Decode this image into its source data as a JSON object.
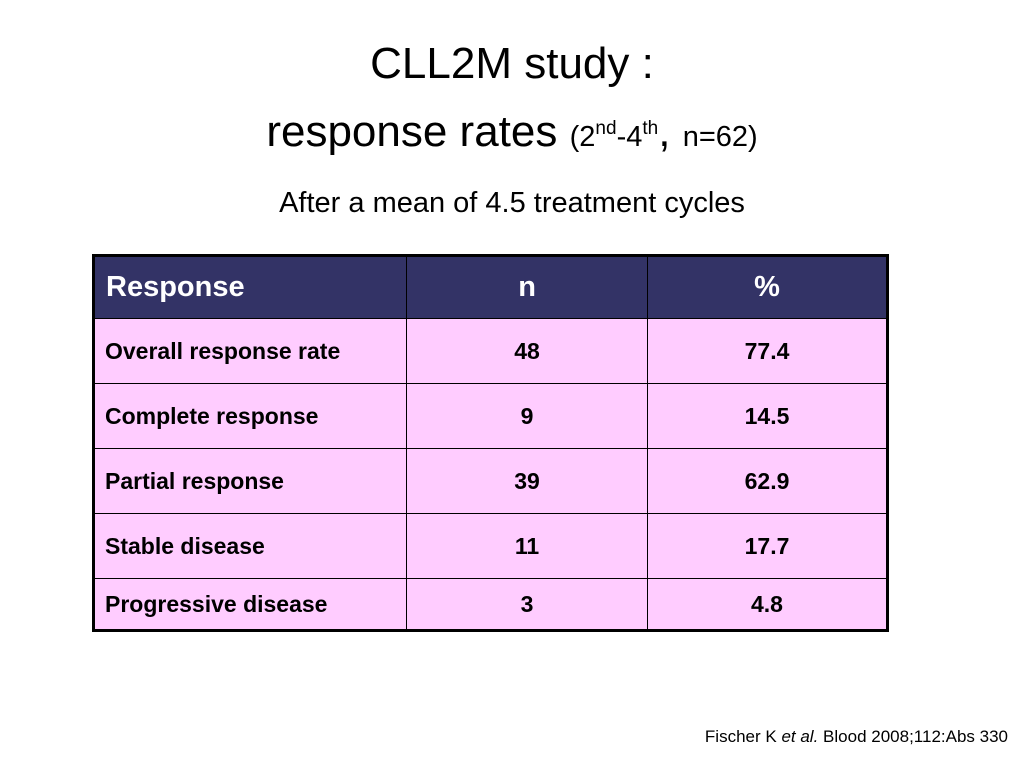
{
  "slide": {
    "title_line1": "CLL2M study :",
    "title_line2_main": "response rates",
    "title_line2_paren_open": "(2",
    "title_line2_sup1": "nd",
    "title_line2_dash": "-4",
    "title_line2_sup2": "th",
    "title_line2_comma": ",",
    "title_line2_n": "n=62)",
    "subtitle": "After a mean of 4.5 treatment cycles"
  },
  "table": {
    "headers": [
      "Response",
      "n",
      "%"
    ],
    "rows": [
      [
        "Overall response rate",
        "48",
        "77.4"
      ],
      [
        "Complete response",
        "9",
        "14.5"
      ],
      [
        "Partial response",
        "39",
        "62.9"
      ],
      [
        "Stable disease",
        "11",
        "17.7"
      ],
      [
        "Progressive disease",
        "3",
        "4.8"
      ]
    ],
    "colors": {
      "header_bg": "#333366",
      "header_text": "#ffffff",
      "cell_bg": "#ffccff"
    }
  },
  "citation": {
    "author": "Fischer K",
    "etal": "et al.",
    "source": "Blood 2008;112:Abs 330"
  }
}
